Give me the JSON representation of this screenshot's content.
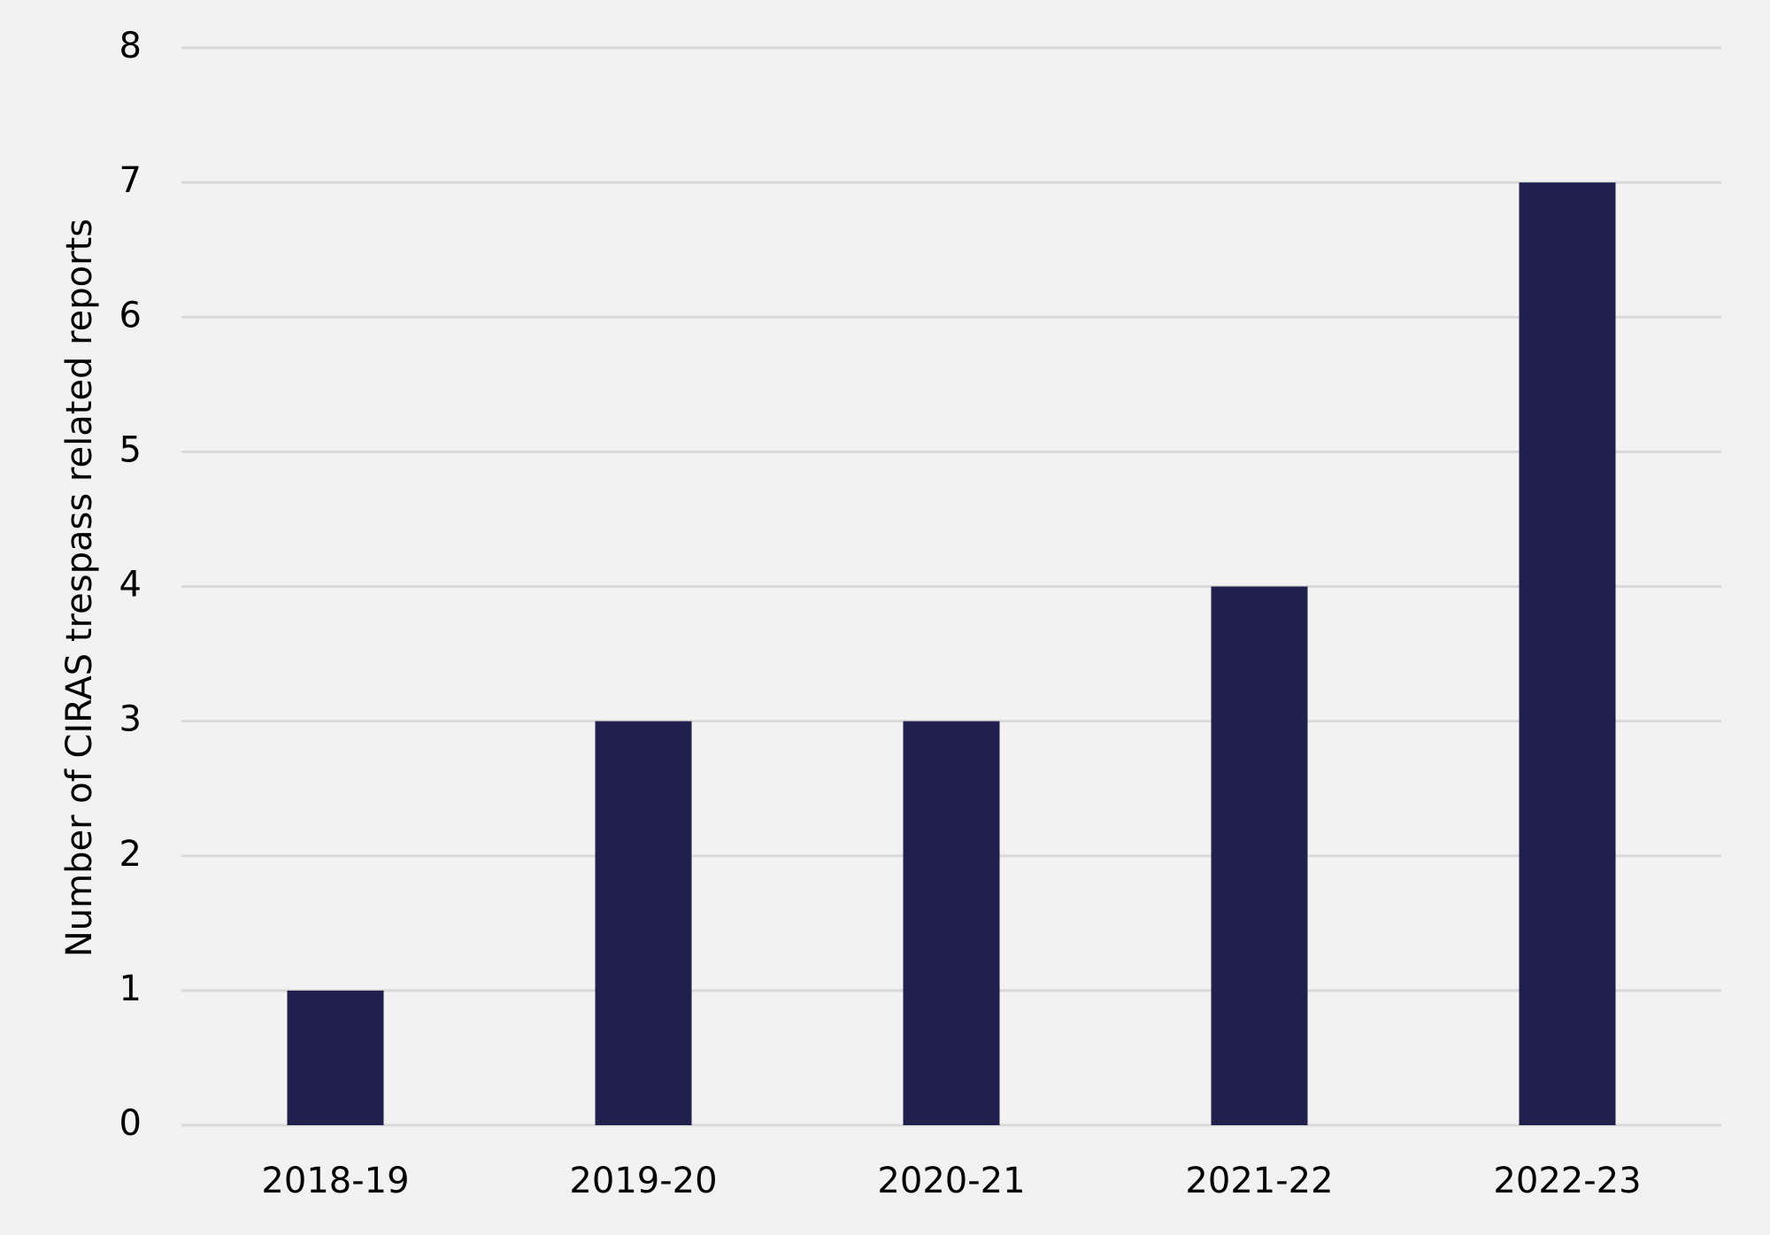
{
  "chart_data": {
    "type": "bar",
    "title": "",
    "xlabel": "",
    "ylabel": "Number of CIRAS trespass related reports",
    "categories": [
      "2018-19",
      "2019-20",
      "2020-21",
      "2021-22",
      "2022-23"
    ],
    "values": [
      1,
      3,
      3,
      4,
      7
    ],
    "ylim": [
      0,
      8
    ],
    "yticks": [
      0,
      1,
      2,
      3,
      4,
      5,
      6,
      7,
      8
    ],
    "grid": true,
    "legend": "none",
    "colors": {
      "bar": "#20204d",
      "grid": "#d9d9d9",
      "background": "#f2f2f2"
    }
  }
}
